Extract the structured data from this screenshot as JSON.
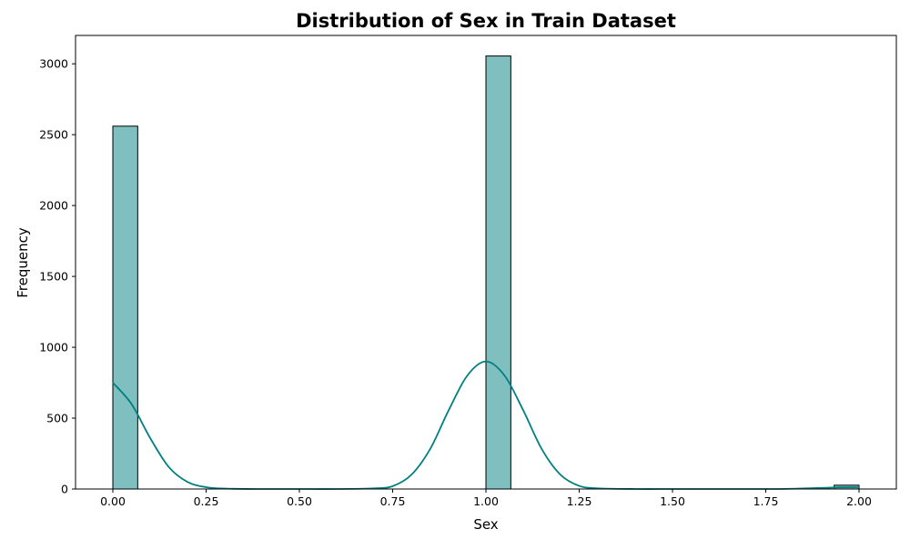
{
  "chart_data": {
    "type": "bar",
    "title": "Distribution of Sex in Train Dataset",
    "xlabel": "Sex",
    "ylabel": "Frequency",
    "xlim": [
      -0.1,
      2.1
    ],
    "ylim": [
      0,
      3200
    ],
    "x_ticks": [
      "0.00",
      "0.25",
      "0.50",
      "0.75",
      "1.00",
      "1.25",
      "1.50",
      "1.75",
      "2.00"
    ],
    "y_ticks": [
      "0",
      "500",
      "1000",
      "1500",
      "2000",
      "2500",
      "3000"
    ],
    "bins": [
      {
        "x0": 0.0,
        "x1": 0.0667,
        "count": 2560
      },
      {
        "x0": 1.0,
        "x1": 1.0667,
        "count": 3055
      },
      {
        "x0": 1.9333,
        "x1": 2.0,
        "count": 27
      }
    ],
    "kde_curve": {
      "x": [
        0.0,
        0.05,
        0.1,
        0.15,
        0.2,
        0.25,
        0.3,
        0.4,
        0.5,
        0.6,
        0.7,
        0.75,
        0.8,
        0.85,
        0.9,
        0.95,
        1.0,
        1.05,
        1.1,
        1.15,
        1.2,
        1.25,
        1.3,
        1.4,
        1.5,
        1.6,
        1.7,
        1.8,
        1.9,
        1.95,
        2.0
      ],
      "y": [
        750,
        600,
        360,
        155,
        50,
        13,
        3,
        0,
        0,
        0,
        5,
        20,
        100,
        280,
        555,
        800,
        900,
        800,
        555,
        280,
        100,
        22,
        5,
        0,
        0,
        0,
        0,
        1,
        8,
        12,
        13
      ]
    },
    "colors": {
      "bar_fill": "#80bfbf",
      "bar_edge": "#000000",
      "kde_line": "#008080"
    },
    "grid": false,
    "legend": "none"
  }
}
